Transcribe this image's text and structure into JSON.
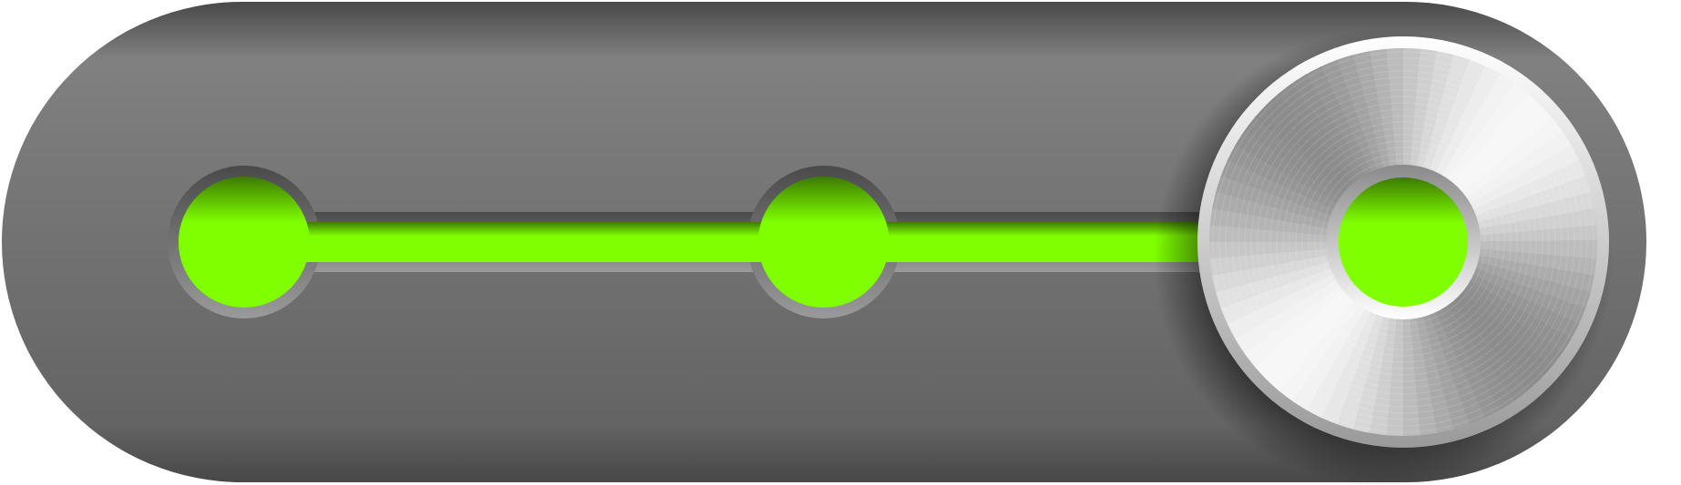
{
  "control": {
    "kind": "stepped-slider",
    "step_count": 3,
    "selected_step": 3,
    "steps": [
      {
        "index": 1,
        "lit": true
      },
      {
        "index": 2,
        "lit": true
      },
      {
        "index": 3,
        "lit": true
      }
    ],
    "fill_fraction": 1.0
  },
  "colors": {
    "track_top": "#858585",
    "track_bottom": "#5f5f5f",
    "track_rim": "#3f3f3f",
    "groove_dark": "#4a4a4a",
    "groove_light": "#9a9a9a",
    "indicator": "#7fff00",
    "indicator_shadow": "#3d7a00",
    "knob_light": "#f7f7f7",
    "knob_mid": "#c8c8c8",
    "knob_dark": "#8c8c8c",
    "knob_ring": "#ffffff"
  },
  "icons": {
    "knob": "brushed-metal-knob-icon",
    "step": "led-dot-icon"
  }
}
